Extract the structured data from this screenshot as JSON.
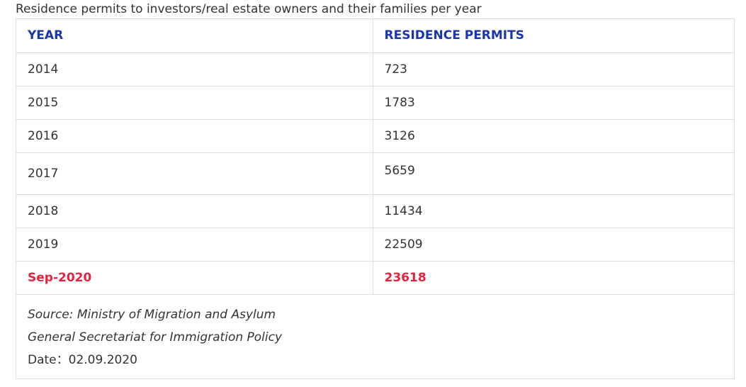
{
  "caption": "Residence permits to investors/real estate owners and their families per year",
  "table": {
    "headers": [
      "YEAR",
      "RESIDENCE PERMITS"
    ],
    "rows": [
      {
        "year": "2014",
        "permits": "723"
      },
      {
        "year": "2015",
        "permits": "1783"
      },
      {
        "year": "2016",
        "permits": "3126"
      },
      {
        "year": "2017",
        "permits": "5659"
      },
      {
        "year": "2018",
        "permits": "11434"
      },
      {
        "year": "2019",
        "permits": "22509"
      },
      {
        "year": "Sep-2020",
        "permits": "23618"
      }
    ],
    "highlight_color": "#e8223c",
    "header_color": "#1a35a8"
  },
  "footer": {
    "source_line1": "Source:  Ministry of Migration and Asylum",
    "source_line2": "General Secretariat for Immigration Policy",
    "date_line": "Date：02.09.2020"
  }
}
